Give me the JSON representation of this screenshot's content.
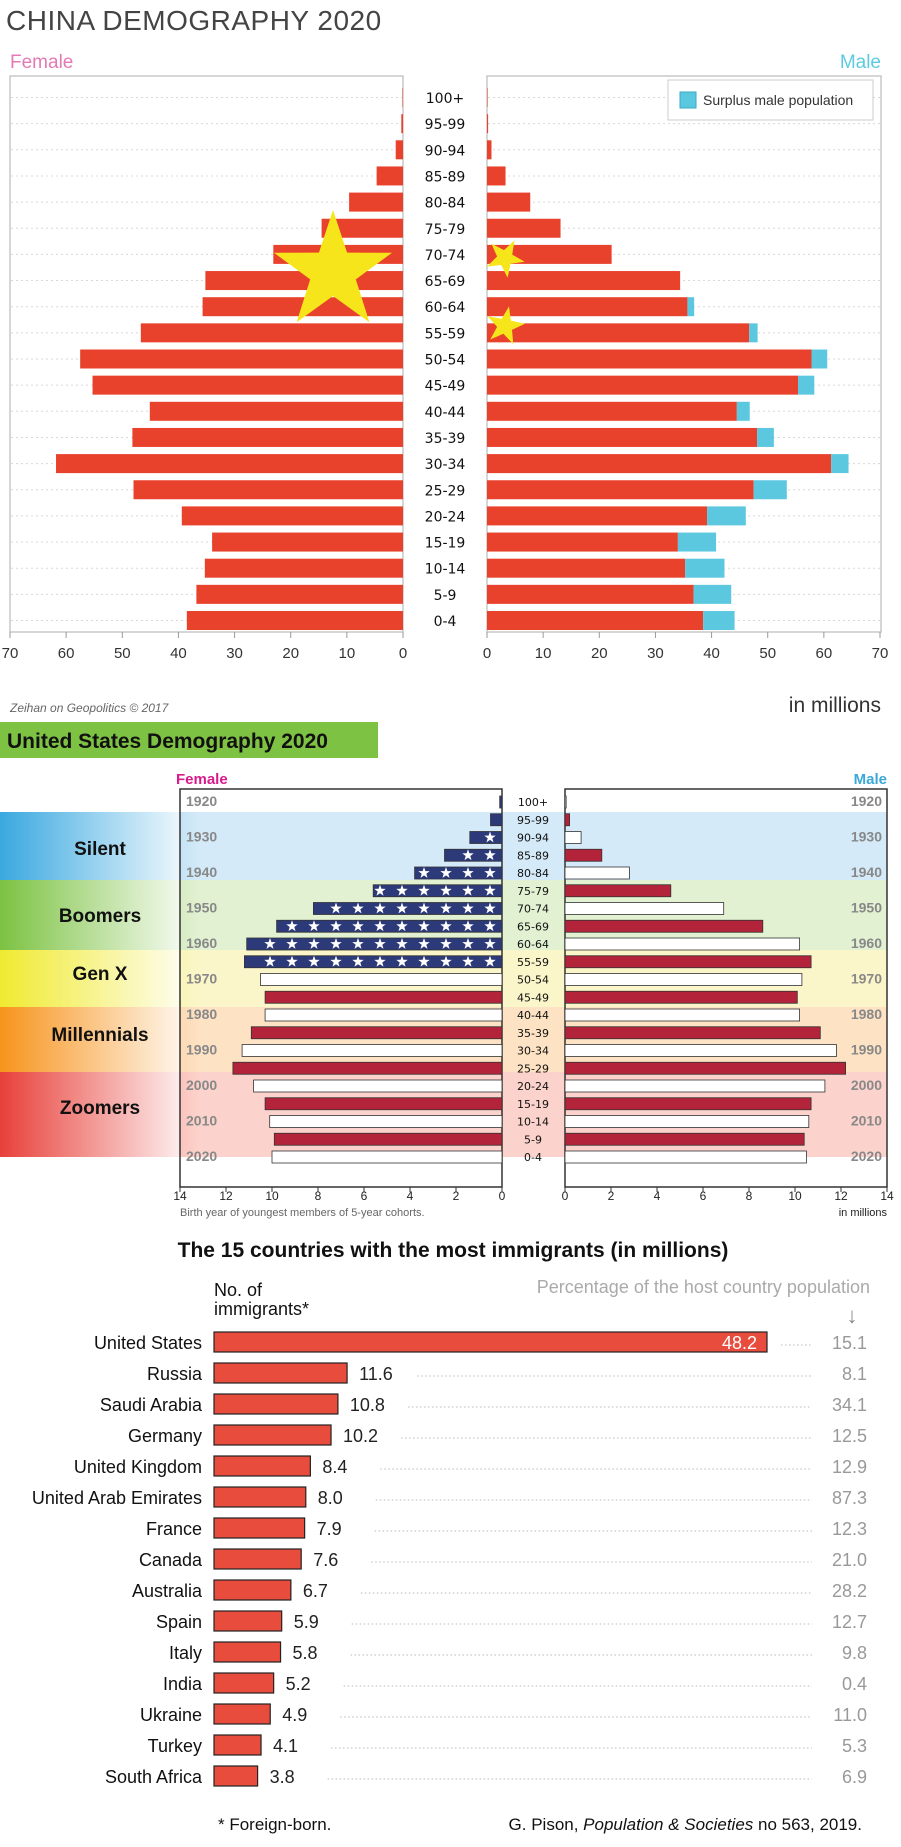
{
  "china": {
    "chart_data": {
      "type": "bar",
      "title": "CHINA DEMOGRAPHY 2020",
      "female_label": "Female",
      "male_label": "Male",
      "legend": "Surplus male population",
      "legend_position": "top-right",
      "categories": [
        "100+",
        "95-99",
        "90-94",
        "85-89",
        "80-84",
        "75-79",
        "70-74",
        "65-69",
        "60-64",
        "55-59",
        "50-54",
        "45-49",
        "40-44",
        "35-39",
        "30-34",
        "25-29",
        "20-24",
        "15-19",
        "10-14",
        "5-9",
        "0-4"
      ],
      "series": [
        {
          "name": "Female",
          "values": [
            0.1,
            0.3,
            1.3,
            4.7,
            9.6,
            14.5,
            23.1,
            35.2,
            35.7,
            46.7,
            57.5,
            55.3,
            45.1,
            48.2,
            61.8,
            48.0,
            39.4,
            34.0,
            35.3,
            36.8,
            38.5
          ]
        },
        {
          "name": "Male",
          "values": [
            0.1,
            0.2,
            0.8,
            3.3,
            7.7,
            13.1,
            22.2,
            34.4,
            35.7,
            46.7,
            57.8,
            55.4,
            44.5,
            48.1,
            61.3,
            47.5,
            39.2,
            34.0,
            35.3,
            36.8,
            38.5
          ]
        },
        {
          "name": "Surplus male population",
          "values": [
            0,
            0,
            0,
            0,
            0,
            0,
            0,
            0,
            1.2,
            1.5,
            2.8,
            2.9,
            2.3,
            3.0,
            3.1,
            5.9,
            6.9,
            6.8,
            7.0,
            6.7,
            5.6
          ]
        }
      ],
      "x_ticks_female": [
        "70",
        "60",
        "50",
        "40",
        "30",
        "20",
        "10",
        "0"
      ],
      "x_ticks_male": [
        "0",
        "10",
        "20",
        "30",
        "40",
        "50",
        "60",
        "70"
      ],
      "xlim": [
        0,
        70
      ],
      "unit_label": "in millions",
      "source": "Zeihan on Geopolitics © 2017"
    }
  },
  "us": {
    "chart_data": {
      "type": "bar",
      "title": "United States Demography 2020",
      "female_label": "Female",
      "male_label": "Male",
      "categories": [
        "100+",
        "95-99",
        "90-94",
        "85-89",
        "80-84",
        "75-79",
        "70-74",
        "65-69",
        "60-64",
        "55-59",
        "50-54",
        "45-49",
        "40-44",
        "35-39",
        "30-34",
        "25-29",
        "20-24",
        "15-19",
        "10-14",
        "5-9",
        "0-4"
      ],
      "series": [
        {
          "name": "Female",
          "values": [
            0.1,
            0.5,
            1.4,
            2.5,
            3.8,
            5.6,
            8.2,
            9.8,
            11.1,
            11.2,
            10.5,
            10.3,
            10.3,
            10.9,
            11.3,
            11.7,
            10.8,
            10.3,
            10.1,
            9.9,
            10.0
          ]
        },
        {
          "name": "Male",
          "values": [
            0.05,
            0.2,
            0.7,
            1.6,
            2.8,
            4.6,
            6.9,
            8.6,
            10.2,
            10.7,
            10.3,
            10.1,
            10.2,
            11.1,
            11.8,
            12.2,
            11.3,
            10.7,
            10.6,
            10.4,
            10.5
          ]
        }
      ],
      "year_labels": [
        "1920",
        "1930",
        "1940",
        "1950",
        "1960",
        "1970",
        "1980",
        "1990",
        "2000",
        "2010",
        "2020"
      ],
      "generations": [
        "Silent",
        "Boomers",
        "Gen X",
        "Millennials",
        "Zoomers"
      ],
      "x_ticks_female": [
        "14",
        "12",
        "10",
        "8",
        "6",
        "4",
        "2",
        "0"
      ],
      "x_ticks_male": [
        "0",
        "2",
        "4",
        "6",
        "8",
        "10",
        "12",
        "14"
      ],
      "xlim": [
        0,
        14
      ],
      "footnote": "Birth year of youngest members of 5-year cohorts.",
      "unit_label": "in millions"
    }
  },
  "immigrants": {
    "chart_data": {
      "type": "bar",
      "title": "The 15 countries with the most immigrants (in millions)",
      "value_header": "No. of immigrants*",
      "pct_header": "Percentage of the host country population",
      "arrow": "↓",
      "categories": [
        "United States",
        "Russia",
        "Saudi Arabia",
        "Germany",
        "United Kingdom",
        "United Arab Emirates",
        "France",
        "Canada",
        "Australia",
        "Spain",
        "Italy",
        "India",
        "Ukraine",
        "Turkey",
        "South Africa"
      ],
      "values": [
        48.2,
        11.6,
        10.8,
        10.2,
        8.4,
        8.0,
        7.9,
        7.6,
        6.7,
        5.9,
        5.8,
        5.2,
        4.9,
        4.1,
        3.8
      ],
      "value_labels": [
        "48.2",
        "11.6",
        "10.8",
        "10.2",
        "8.4",
        "8.0",
        "7.9",
        "7.6",
        "6.7",
        "5.9",
        "5.8",
        "5.2",
        "4.9",
        "4.1",
        "3.8"
      ],
      "percentages": [
        "15.1",
        "8.1",
        "34.1",
        "12.5",
        "12.9",
        "87.3",
        "12.3",
        "21.0",
        "28.2",
        "12.7",
        "9.8",
        "0.4",
        "11.0",
        "5.3",
        "6.9"
      ],
      "footnote": "*  Foreign-born.",
      "source_prefix": "G. Pison, ",
      "source_italic": "Population & Societies",
      "source_suffix": " no 563, 2019."
    }
  }
}
